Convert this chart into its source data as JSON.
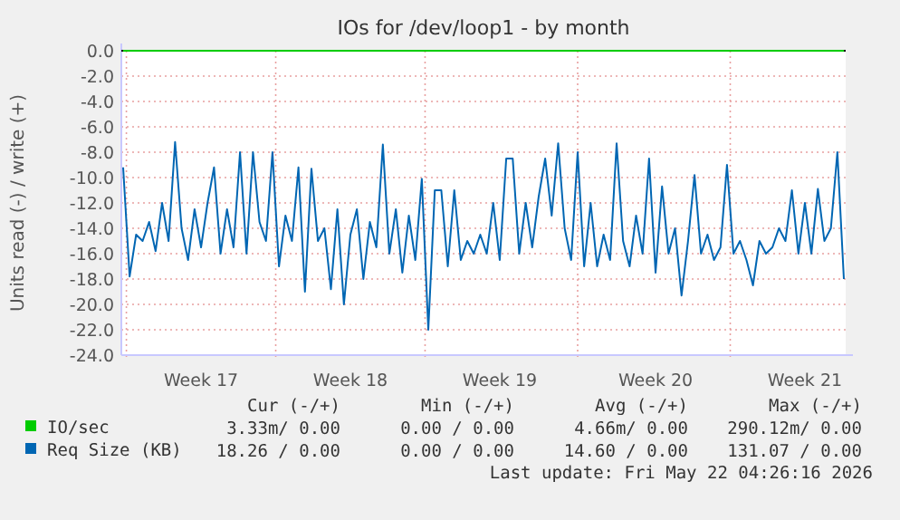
{
  "chart_data": {
    "type": "line",
    "title": "IOs for /dev/loop1 - by month",
    "ylabel": "Units read (-) / write (+)",
    "categories": [
      null,
      null,
      null,
      null,
      null,
      null,
      null,
      null,
      null,
      null,
      null,
      null,
      "Week 17",
      null,
      null,
      null,
      null,
      null,
      null,
      null,
      null,
      null,
      null,
      null,
      null,
      null,
      null,
      null,
      null,
      null,
      null,
      null,
      null,
      null,
      null,
      "Week 18",
      null,
      null,
      null,
      null,
      null,
      null,
      null,
      null,
      null,
      null,
      null,
      null,
      null,
      null,
      null,
      null,
      null,
      null,
      null,
      null,
      null,
      null,
      "Week 19",
      null,
      null,
      null,
      null,
      null,
      null,
      null,
      null,
      null,
      null,
      null,
      null,
      null,
      null,
      null,
      null,
      null,
      null,
      null,
      null,
      null,
      null,
      null,
      "Week 20",
      null,
      null,
      null,
      null,
      null,
      null,
      null,
      null,
      null,
      null,
      null,
      null,
      null,
      null,
      null,
      null,
      null,
      null,
      null,
      null,
      null,
      null,
      "Week 21",
      null,
      null,
      null,
      null,
      null,
      null
    ],
    "ylim": [
      -24,
      0
    ],
    "yticks": [
      {
        "value": 0,
        "label": "0.0"
      },
      {
        "value": -2,
        "label": "-2.0"
      },
      {
        "value": -4,
        "label": "-4.0"
      },
      {
        "value": -6,
        "label": "-6.0"
      },
      {
        "value": -8,
        "label": "-8.0"
      },
      {
        "value": -10,
        "label": "-10.0"
      },
      {
        "value": -12,
        "label": "-12.0"
      },
      {
        "value": -14,
        "label": "-14.0"
      },
      {
        "value": -16,
        "label": "-16.0"
      },
      {
        "value": -18,
        "label": "-18.0"
      },
      {
        "value": -20,
        "label": "-20.0"
      },
      {
        "value": -22,
        "label": "-22.0"
      },
      {
        "value": -24,
        "label": "-24.0"
      }
    ],
    "grid": true,
    "legend": "bottom",
    "series": [
      {
        "name": "IO/sec",
        "color": "#00cc00",
        "values": [
          0,
          0,
          0,
          0,
          0,
          0,
          0,
          0,
          0,
          0,
          0,
          0,
          0,
          0,
          0,
          0,
          0,
          0,
          0,
          0,
          0,
          0,
          0,
          0,
          0,
          0,
          0,
          0,
          0,
          0,
          0,
          0,
          0,
          0,
          0,
          0,
          0,
          0,
          0,
          0,
          0,
          0,
          0,
          0,
          0,
          0,
          0,
          0,
          0,
          0,
          0,
          0,
          0,
          0,
          0,
          0,
          0,
          0,
          0,
          0,
          0,
          0,
          0,
          0,
          0,
          0,
          0,
          0,
          0,
          0,
          0,
          0,
          0,
          0,
          0,
          0,
          0,
          0,
          0,
          0,
          0,
          0,
          0,
          0,
          0,
          0,
          0,
          0,
          0,
          0,
          0,
          0,
          0,
          0,
          0,
          0,
          0,
          0,
          0,
          0,
          0,
          0,
          0,
          0,
          0,
          0,
          0,
          0,
          0,
          0,
          0,
          0
        ]
      },
      {
        "name": "Req Size (KB)",
        "color": "#0066b3",
        "values": [
          -9.2,
          -17.8,
          -14.5,
          -15,
          -13.5,
          -15.8,
          -12,
          -15,
          -7.2,
          -14,
          -16.5,
          -12.5,
          -15.5,
          -12,
          -9.2,
          -16,
          -12.5,
          -15.5,
          -8,
          -16,
          -8,
          -13.5,
          -15,
          -8,
          -17,
          -13,
          -15,
          -9.2,
          -19,
          -9.3,
          -15,
          -14,
          -18.8,
          -12.5,
          -20,
          -14.5,
          -12.5,
          -18,
          -13.5,
          -15.5,
          -7.4,
          -16,
          -12.5,
          -17.5,
          -13,
          -16.5,
          -10.1,
          -22,
          -11,
          -11,
          -17,
          -11,
          -16.5,
          -15,
          -16,
          -14.5,
          -16,
          -12,
          -16.5,
          -8.5,
          -8.5,
          -16,
          -12,
          -15.5,
          -11.5,
          -8.5,
          -13,
          -7.3,
          -14,
          -16.5,
          -8,
          -17,
          -12,
          -17,
          -14.5,
          -16.5,
          -7.3,
          -15,
          -17,
          -13,
          -16,
          -8.5,
          -17.5,
          -10.7,
          -16,
          -14,
          -19.3,
          -15,
          -9.8,
          -16,
          -14.5,
          -16.5,
          -15.5,
          -9,
          -16,
          -15,
          -16.5,
          -18.5,
          -15,
          -16,
          -15.5,
          -14,
          -15,
          -11,
          -16,
          -12,
          -16,
          -10.9,
          -15,
          -14,
          -8,
          -18
        ]
      }
    ],
    "annotations": [
      "Cur (-/+)",
      "Min (-/+)",
      "Avg (-/+)",
      "Max (-/+)",
      "3.33m/ 0.00",
      "0.00 / 0.00",
      "4.66m/ 0.00",
      "290.12m/ 0.00",
      "18.26 / 0.00",
      "0.00 / 0.00",
      "14.60 / 0.00",
      "131.07 / 0.00",
      "Last update: Fri May 22 04:26:16 2026"
    ]
  }
}
